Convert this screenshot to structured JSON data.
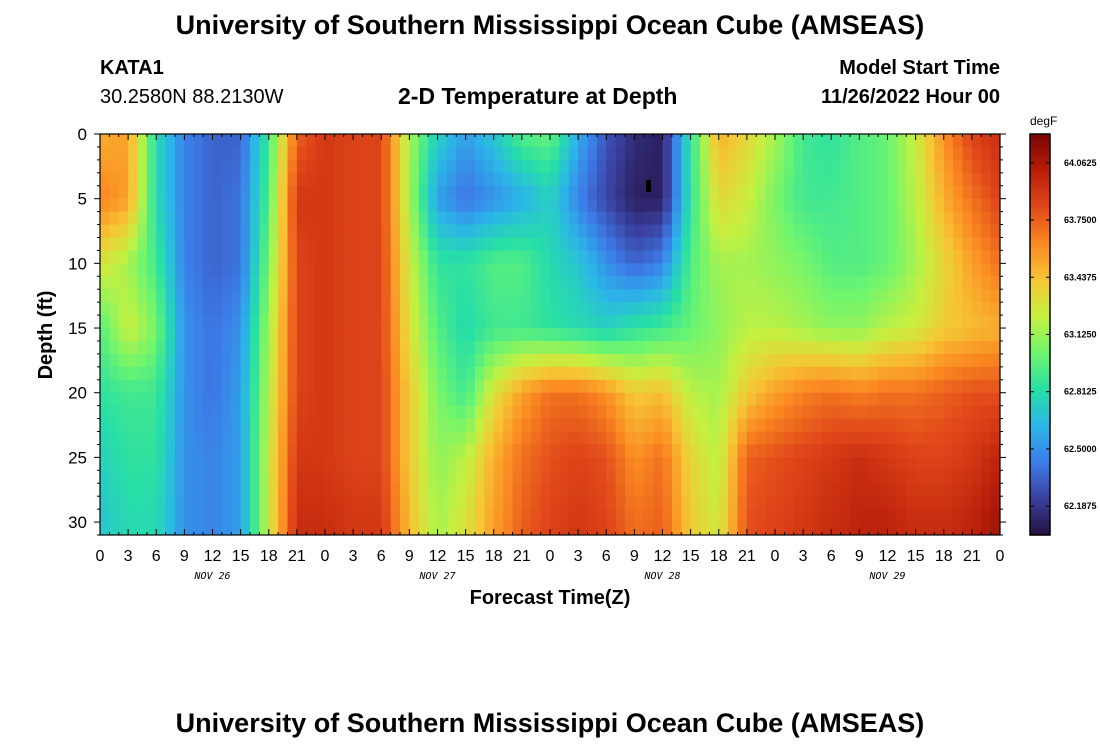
{
  "header": {
    "title": "University of Southern Mississippi Ocean Cube (AMSEAS)",
    "station_id": "KATA1",
    "station_coords": "30.2580N  88.2130W",
    "panel_title": "2-D Temperature at Depth",
    "model_start_label": "Model Start Time",
    "model_start_value": "11/26/2022 Hour 00"
  },
  "footer": {
    "repeat_title": "University of Southern Mississippi Ocean Cube (AMSEAS)"
  },
  "colors": {
    "palette": [
      "#230f3e",
      "#3b3f9e",
      "#3c7ce8",
      "#2bb6e8",
      "#27dfa6",
      "#6ff56e",
      "#c5f040",
      "#f6c635",
      "#fb8a22",
      "#e1491a",
      "#b91f0a",
      "#7a0403"
    ]
  },
  "chart_data": {
    "type": "heatmap",
    "xlabel": "Forecast Time(Z)",
    "ylabel": "Depth (ft)",
    "x_range_hours": [
      0,
      96
    ],
    "y_range_ft": [
      0,
      31
    ],
    "x_tick_labels": [
      "0",
      "3",
      "6",
      "9",
      "12",
      "15",
      "18",
      "21",
      "0",
      "3",
      "6",
      "9",
      "12",
      "15",
      "18",
      "21",
      "0",
      "3",
      "6",
      "9",
      "12",
      "15",
      "18",
      "21",
      "0",
      "3",
      "6",
      "9",
      "12",
      "15",
      "18",
      "21",
      "0"
    ],
    "day_labels": [
      "NOV 26",
      "NOV 27",
      "NOV 28",
      "NOV 29"
    ],
    "y_ticks": [
      0,
      5,
      10,
      15,
      20,
      25,
      30
    ],
    "colorbar": {
      "unit": "degF",
      "range": [
        62.03,
        64.22
      ],
      "tick_values": [
        64.0625,
        63.75,
        63.4375,
        63.125,
        62.8125,
        62.5,
        62.1875
      ],
      "tick_labels": [
        "64.0625",
        "63.7500",
        "63.4375",
        "63.1250",
        "62.8125",
        "62.5000",
        "62.1875"
      ]
    },
    "sample_depths_ft": [
      0,
      5,
      10,
      15,
      20,
      25,
      30
    ],
    "sample_times_hours": [
      0,
      3,
      6,
      9,
      12,
      15,
      18,
      21,
      24,
      27,
      30,
      33,
      36,
      39,
      42,
      45,
      48,
      51,
      54,
      57,
      60,
      63,
      66,
      69,
      72,
      75,
      78,
      81,
      84,
      87,
      90,
      93,
      96
    ],
    "values_degF": [
      [
        63.5,
        63.55,
        62.8,
        62.45,
        62.35,
        62.35,
        62.9,
        63.75,
        63.9,
        63.85,
        63.85,
        63.15,
        62.75,
        62.55,
        62.7,
        62.95,
        63.0,
        62.6,
        62.3,
        62.15,
        62.1,
        62.85,
        63.5,
        63.35,
        63.15,
        62.9,
        62.85,
        62.95,
        63.0,
        63.25,
        63.6,
        63.85,
        63.95
      ],
      [
        63.65,
        63.55,
        62.8,
        62.45,
        62.35,
        62.4,
        62.95,
        63.9,
        63.9,
        63.85,
        63.85,
        63.15,
        62.55,
        62.4,
        62.5,
        62.6,
        62.75,
        62.45,
        62.25,
        62.1,
        62.1,
        62.85,
        63.35,
        63.25,
        63.05,
        62.9,
        62.9,
        62.95,
        63.0,
        63.2,
        63.5,
        63.7,
        63.85
      ],
      [
        63.3,
        63.15,
        62.9,
        62.45,
        62.35,
        62.4,
        63.05,
        63.85,
        63.9,
        63.85,
        63.85,
        63.25,
        62.85,
        62.85,
        62.95,
        62.95,
        62.8,
        62.7,
        62.5,
        62.35,
        62.45,
        62.95,
        63.15,
        63.15,
        63.1,
        63.05,
        62.95,
        62.95,
        63.0,
        63.15,
        63.35,
        63.55,
        63.7
      ],
      [
        62.95,
        63.25,
        63.05,
        62.5,
        62.4,
        62.5,
        63.15,
        63.85,
        63.9,
        63.85,
        63.85,
        63.3,
        62.95,
        62.8,
        62.9,
        62.9,
        62.85,
        62.8,
        62.75,
        62.85,
        62.9,
        63.0,
        63.1,
        63.2,
        63.2,
        63.15,
        63.1,
        63.1,
        63.2,
        63.25,
        63.4,
        63.45,
        63.5
      ],
      [
        62.85,
        62.9,
        62.9,
        62.5,
        62.4,
        62.55,
        63.2,
        63.85,
        63.9,
        63.85,
        63.85,
        63.4,
        63.05,
        62.9,
        63.3,
        63.55,
        63.7,
        63.7,
        63.6,
        63.4,
        63.45,
        63.2,
        63.15,
        63.4,
        63.55,
        63.65,
        63.7,
        63.65,
        63.7,
        63.7,
        63.75,
        63.8,
        63.8
      ],
      [
        62.75,
        62.85,
        62.85,
        62.5,
        62.45,
        62.55,
        63.25,
        63.9,
        63.9,
        63.85,
        63.85,
        63.4,
        63.1,
        63.2,
        63.5,
        63.7,
        63.8,
        63.85,
        63.8,
        63.6,
        63.7,
        63.35,
        63.2,
        63.75,
        63.8,
        63.85,
        63.9,
        63.95,
        63.9,
        63.85,
        63.85,
        63.9,
        64.0
      ],
      [
        62.7,
        62.8,
        62.8,
        62.5,
        62.45,
        62.55,
        63.25,
        63.95,
        63.95,
        63.9,
        63.9,
        63.45,
        63.15,
        63.3,
        63.55,
        63.75,
        63.85,
        63.9,
        63.85,
        63.7,
        63.75,
        63.4,
        63.25,
        63.8,
        63.85,
        63.9,
        63.95,
        64.0,
        64.0,
        63.95,
        63.95,
        64.0,
        64.1
      ]
    ]
  }
}
